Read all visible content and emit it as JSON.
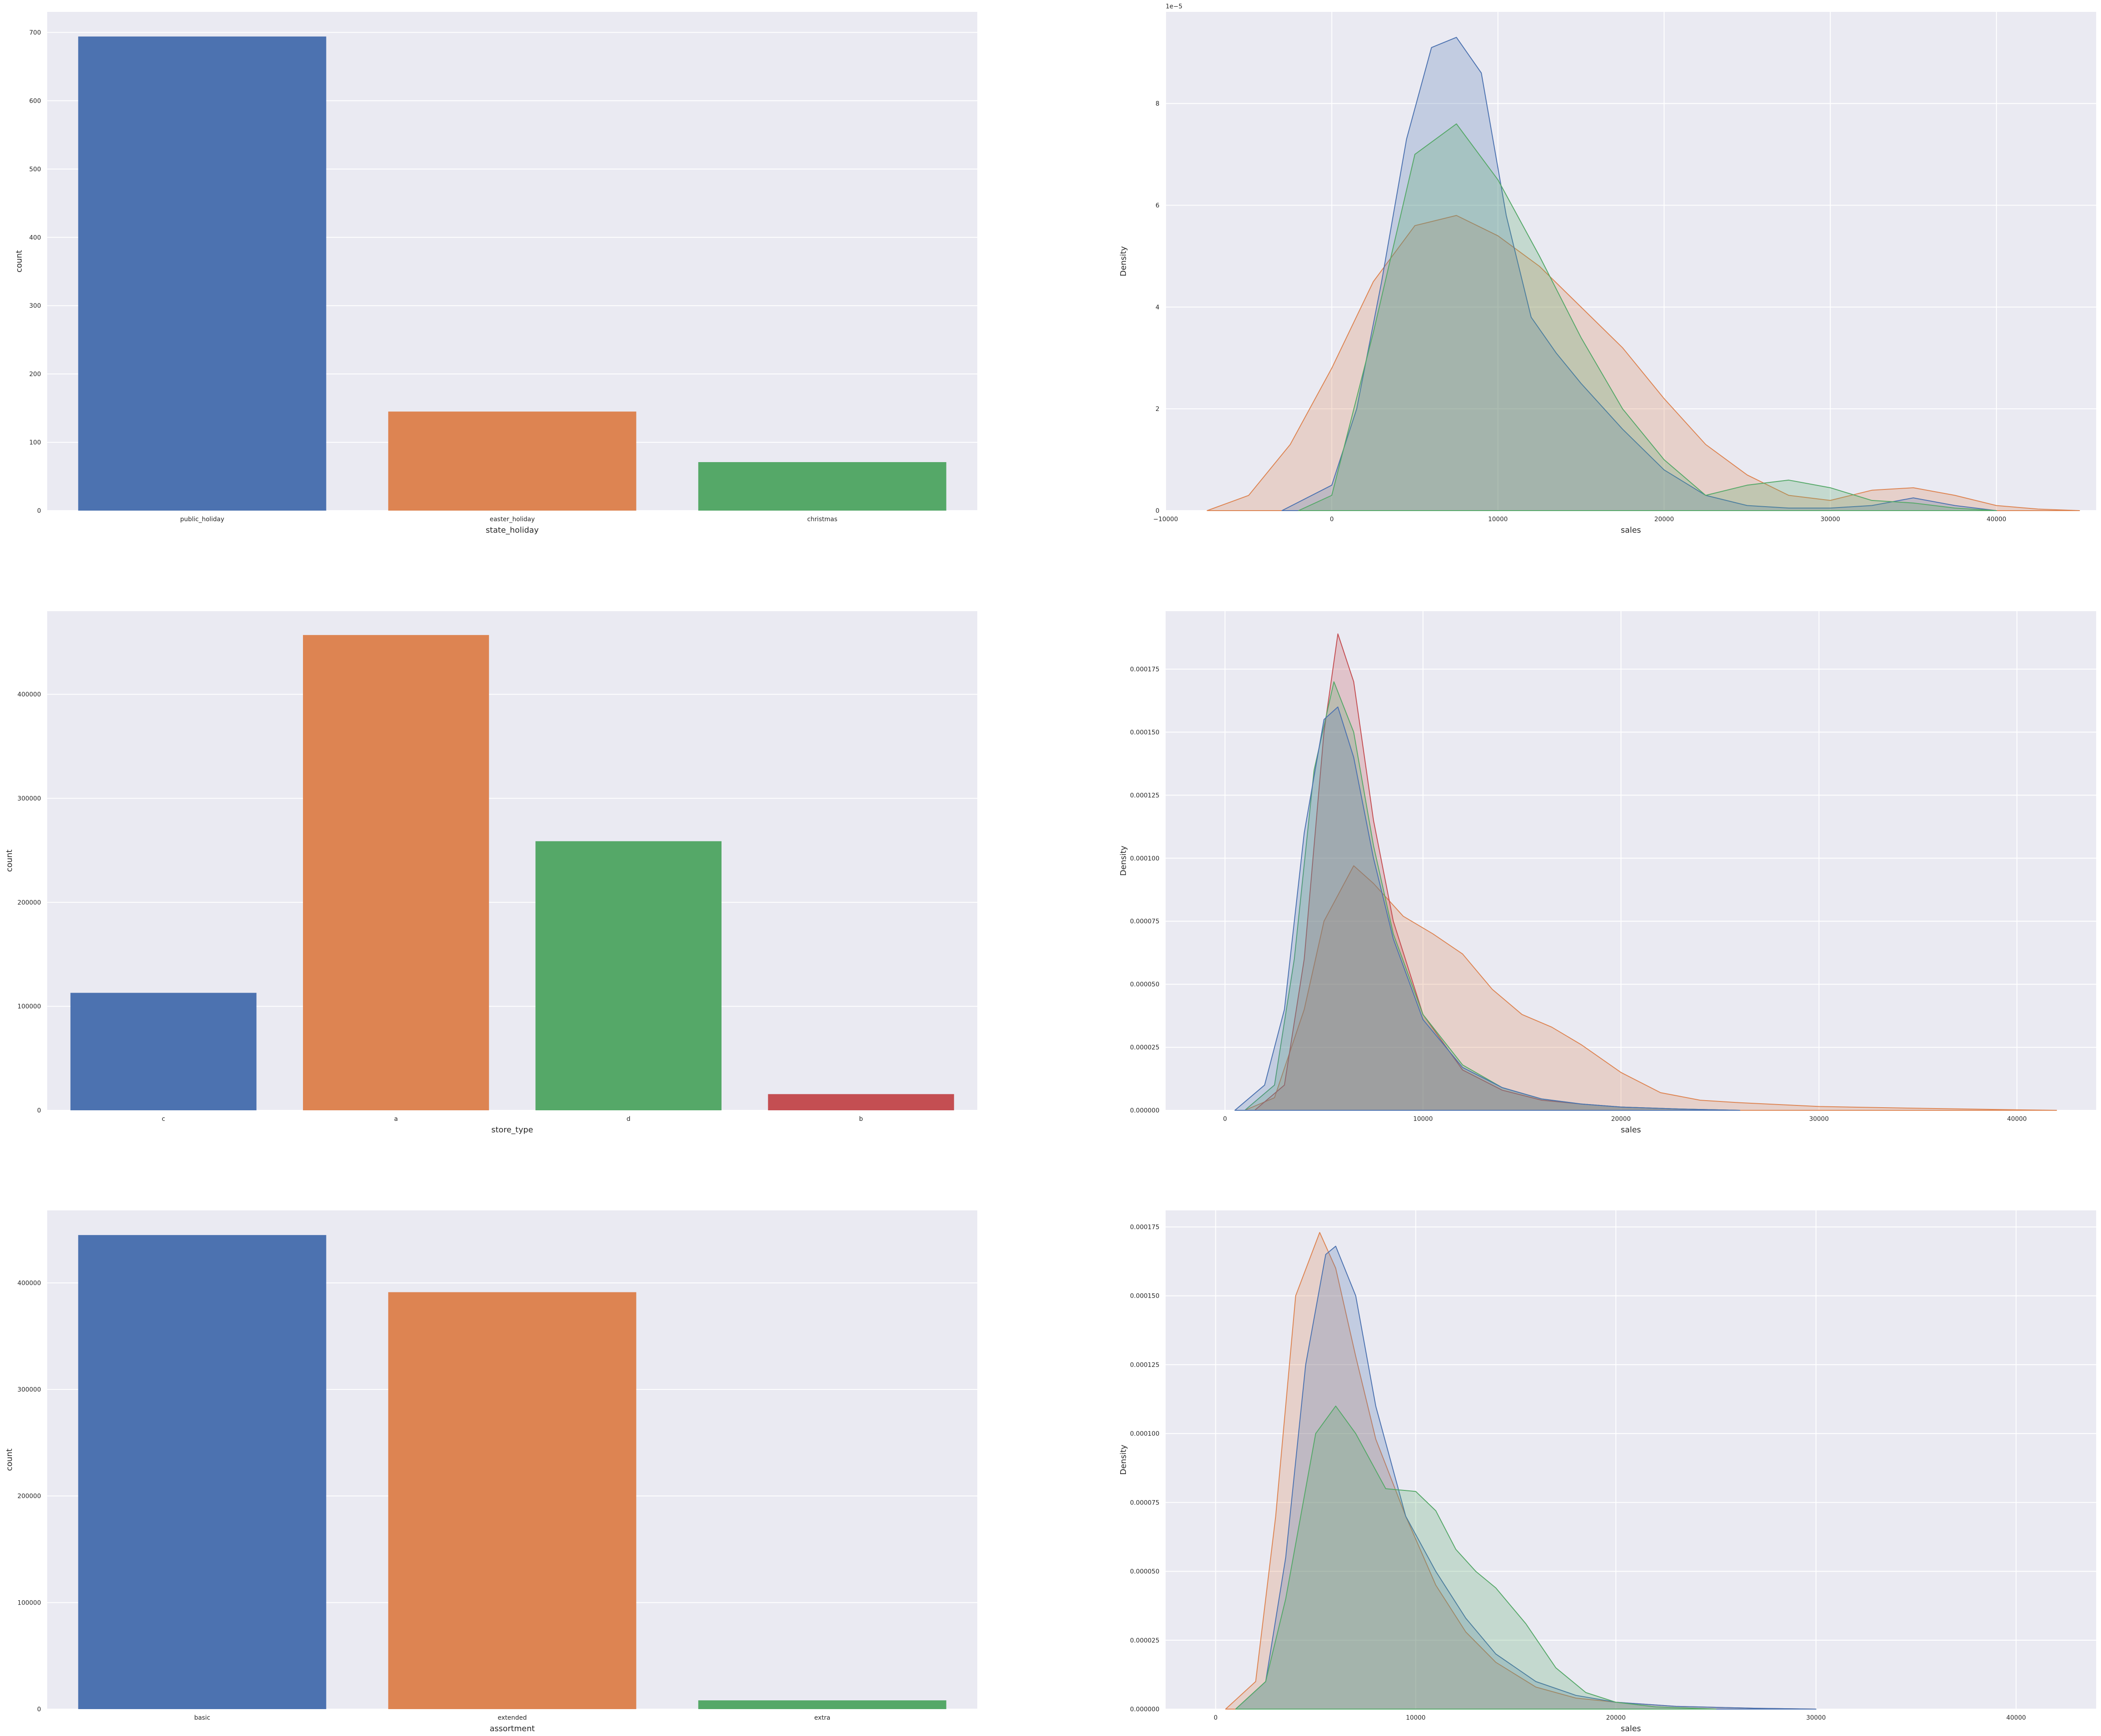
{
  "colors": {
    "background": "#eaeaf2",
    "grid": "#ffffff",
    "blue": "#4c72b0",
    "orange": "#dd8452",
    "green": "#55a868",
    "red": "#c44e52"
  },
  "chart_data": [
    {
      "type": "bar",
      "xlabel": "state_holiday",
      "ylabel": "count",
      "categories": [
        "public_holiday",
        "easter_holiday",
        "christmas"
      ],
      "values": [
        694,
        145,
        71
      ],
      "bar_colors": [
        "blue",
        "orange",
        "green"
      ],
      "ylim": [
        0,
        730
      ],
      "yticks": [
        0,
        100,
        200,
        300,
        400,
        500,
        600,
        700
      ],
      "ytick_labels": [
        "0",
        "100",
        "200",
        "300",
        "400",
        "500",
        "600",
        "700"
      ],
      "grid": true
    },
    {
      "type": "area",
      "xlabel": "sales",
      "ylabel": "Density",
      "offset_text": "1e−5",
      "xlim": [
        -10000,
        46000
      ],
      "ylim": [
        0,
        9.8
      ],
      "xticks": [
        -10000,
        0,
        10000,
        20000,
        30000,
        40000
      ],
      "xtick_labels": [
        "−10000",
        "0",
        "10000",
        "20000",
        "30000",
        "40000"
      ],
      "yticks": [
        0,
        2,
        4,
        6,
        8
      ],
      "ytick_labels": [
        "0",
        "2",
        "4",
        "6",
        "8"
      ],
      "grid": true,
      "series": [
        {
          "color": "orange",
          "x": [
            -7500,
            -5000,
            -2500,
            0,
            2500,
            5000,
            7500,
            10000,
            12500,
            15000,
            17500,
            20000,
            22500,
            25000,
            27500,
            30000,
            32500,
            35000,
            37500,
            40000,
            42500,
            45000
          ],
          "y": [
            0,
            0.3,
            1.3,
            2.8,
            4.5,
            5.6,
            5.8,
            5.4,
            4.8,
            4.0,
            3.2,
            2.2,
            1.3,
            0.7,
            0.3,
            0.2,
            0.4,
            0.45,
            0.3,
            0.1,
            0.03,
            0
          ]
        },
        {
          "color": "blue",
          "x": [
            -3000,
            0,
            1500,
            3000,
            4500,
            6000,
            7500,
            9000,
            10500,
            12000,
            13500,
            15000,
            17500,
            20000,
            22500,
            25000,
            27500,
            30000,
            32500,
            35000,
            37500,
            40000
          ],
          "y": [
            0,
            0.5,
            2.0,
            4.5,
            7.3,
            9.1,
            9.3,
            8.6,
            5.8,
            3.8,
            3.1,
            2.5,
            1.6,
            0.8,
            0.3,
            0.1,
            0.05,
            0.05,
            0.1,
            0.25,
            0.1,
            0
          ]
        },
        {
          "color": "green",
          "x": [
            -2000,
            0,
            2500,
            5000,
            7500,
            10000,
            12500,
            15000,
            17500,
            20000,
            22500,
            25000,
            27500,
            30000,
            32500,
            35000,
            37500,
            40000
          ],
          "y": [
            0,
            0.3,
            3.5,
            7.0,
            7.6,
            6.5,
            5.0,
            3.4,
            2.0,
            1.0,
            0.3,
            0.5,
            0.6,
            0.45,
            0.2,
            0.15,
            0.05,
            0
          ]
        }
      ]
    },
    {
      "type": "bar",
      "xlabel": "store_type",
      "ylabel": "count",
      "categories": [
        "c",
        "a",
        "d",
        "b"
      ],
      "values": [
        112968,
        457042,
        258768,
        15563
      ],
      "bar_colors": [
        "blue",
        "orange",
        "green",
        "red"
      ],
      "ylim": [
        0,
        480000
      ],
      "yticks": [
        0,
        100000,
        200000,
        300000,
        400000
      ],
      "ytick_labels": [
        "0",
        "100000",
        "200000",
        "300000",
        "400000"
      ],
      "grid": true
    },
    {
      "type": "area",
      "xlabel": "sales",
      "ylabel": "Density",
      "xlim": [
        -3000,
        44000
      ],
      "ylim": [
        0,
        0.000198
      ],
      "xticks": [
        0,
        10000,
        20000,
        30000,
        40000
      ],
      "xtick_labels": [
        "0",
        "10000",
        "20000",
        "30000",
        "40000"
      ],
      "yticks": [
        0,
        2.5e-05,
        5e-05,
        7.5e-05,
        0.0001,
        0.000125,
        0.00015,
        0.000175
      ],
      "ytick_labels": [
        "0.000000",
        "0.000025",
        "0.000050",
        "0.000075",
        "0.000100",
        "0.000125",
        "0.000150",
        "0.000175"
      ],
      "grid": true,
      "series": [
        {
          "color": "orange",
          "x": [
            1000,
            2500,
            4000,
            5000,
            6500,
            7500,
            9000,
            10500,
            12000,
            13500,
            15000,
            16500,
            18000,
            20000,
            22000,
            24000,
            26000,
            30000,
            35000,
            40000,
            42000
          ],
          "y": [
            0,
            5e-06,
            4e-05,
            7.5e-05,
            9.7e-05,
            9e-05,
            7.7e-05,
            7e-05,
            6.2e-05,
            4.8e-05,
            3.8e-05,
            3.3e-05,
            2.6e-05,
            1.5e-05,
            7e-06,
            4e-06,
            3e-06,
            1.5e-06,
            8e-07,
            2e-07,
            0
          ]
        },
        {
          "color": "red",
          "x": [
            1500,
            3000,
            4000,
            5000,
            5700,
            6500,
            7500,
            8500,
            10000,
            12000,
            14000,
            16000,
            18000,
            20000,
            23000,
            26000
          ],
          "y": [
            0,
            1e-05,
            6e-05,
            0.00015,
            0.000189,
            0.00017,
            0.000115,
            7.5e-05,
            3.8e-05,
            1.6e-05,
            8e-06,
            4e-06,
            2.5e-06,
            1.3e-06,
            5e-07,
            0
          ]
        },
        {
          "color": "green",
          "x": [
            1000,
            2500,
            3500,
            4500,
            5500,
            6500,
            7500,
            8500,
            10000,
            12000,
            14000,
            16000,
            18000,
            20000,
            23000,
            26000
          ],
          "y": [
            0,
            1e-05,
            6e-05,
            0.000135,
            0.00017,
            0.00015,
            0.000105,
            7e-05,
            3.8e-05,
            1.8e-05,
            9e-06,
            4.5e-06,
            2.5e-06,
            1.3e-06,
            5e-07,
            0
          ]
        },
        {
          "color": "blue",
          "x": [
            500,
            2000,
            3000,
            4000,
            5000,
            5700,
            6500,
            7500,
            8500,
            10000,
            12000,
            14000,
            16000,
            18000,
            20000,
            23000,
            26000
          ],
          "y": [
            0,
            1e-05,
            4e-05,
            0.00011,
            0.000155,
            0.00016,
            0.00014,
            0.0001,
            6.8e-05,
            3.6e-05,
            1.7e-05,
            9e-06,
            4.5e-06,
            2.5e-06,
            1.3e-06,
            5e-07,
            0
          ]
        }
      ]
    },
    {
      "type": "bar",
      "xlabel": "assortment",
      "ylabel": "count",
      "categories": [
        "basic",
        "extended",
        "extra"
      ],
      "values": [
        444875,
        391254,
        8209
      ],
      "bar_colors": [
        "blue",
        "orange",
        "green"
      ],
      "ylim": [
        0,
        468000
      ],
      "yticks": [
        0,
        100000,
        200000,
        300000,
        400000
      ],
      "ytick_labels": [
        "0",
        "100000",
        "200000",
        "300000",
        "400000"
      ],
      "grid": true
    },
    {
      "type": "area",
      "xlabel": "sales",
      "ylabel": "Density",
      "xlim": [
        -2500,
        44000
      ],
      "ylim": [
        0,
        0.000181
      ],
      "xticks": [
        0,
        10000,
        20000,
        30000,
        40000
      ],
      "xtick_labels": [
        "0",
        "10000",
        "20000",
        "30000",
        "40000"
      ],
      "yticks": [
        0,
        2.5e-05,
        5e-05,
        7.5e-05,
        0.0001,
        0.000125,
        0.00015,
        0.000175
      ],
      "ytick_labels": [
        "0.000000",
        "0.000025",
        "0.000050",
        "0.000075",
        "0.000100",
        "0.000125",
        "0.000150",
        "0.000175"
      ],
      "grid": true,
      "series": [
        {
          "color": "orange",
          "x": [
            500,
            2000,
            3000,
            4000,
            5200,
            6000,
            7000,
            8000,
            9500,
            11000,
            12500,
            14000,
            16000,
            18000,
            20000,
            23000,
            27000,
            30000
          ],
          "y": [
            0,
            1e-05,
            7e-05,
            0.00015,
            0.000173,
            0.00016,
            0.000128,
            9.8e-05,
            7e-05,
            4.5e-05,
            2.8e-05,
            1.7e-05,
            8e-06,
            4e-06,
            2.5e-06,
            1e-06,
            3e-07,
            0
          ]
        },
        {
          "color": "blue",
          "x": [
            1000,
            2500,
            3500,
            4500,
            5500,
            6000,
            7000,
            8000,
            9500,
            11000,
            12500,
            14000,
            16000,
            18000,
            20000,
            23000,
            27000,
            30000
          ],
          "y": [
            0,
            1e-05,
            5.5e-05,
            0.000125,
            0.000165,
            0.000168,
            0.00015,
            0.00011,
            7e-05,
            5e-05,
            3.3e-05,
            2e-05,
            1e-05,
            5e-06,
            2.5e-06,
            1e-06,
            3e-07,
            0
          ]
        },
        {
          "color": "green",
          "x": [
            1000,
            2500,
            3500,
            5000,
            6000,
            7000,
            8500,
            10000,
            11000,
            12000,
            13000,
            14000,
            15500,
            17000,
            18500,
            20000,
            22000,
            25000
          ],
          "y": [
            0,
            1e-05,
            4e-05,
            0.0001,
            0.00011,
            0.0001,
            8e-05,
            7.9e-05,
            7.2e-05,
            5.8e-05,
            5e-05,
            4.4e-05,
            3.1e-05,
            1.5e-05,
            6e-06,
            2.5e-06,
            8e-07,
            0
          ]
        }
      ]
    }
  ]
}
